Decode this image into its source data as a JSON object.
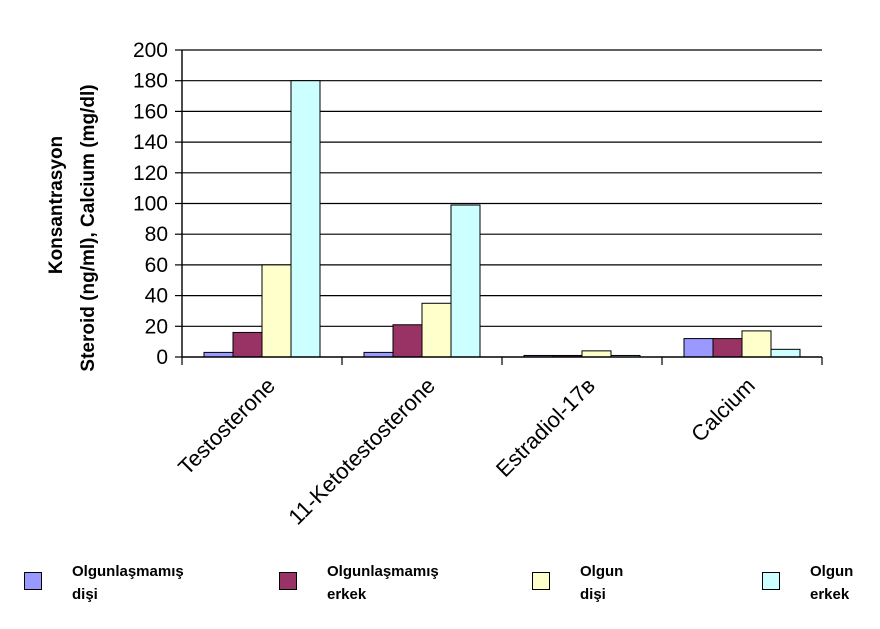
{
  "chart_data": {
    "type": "bar",
    "categories": [
      "Testosterone",
      "11-Ketotestosterone",
      "Estradiol-17ʙ",
      "Calcium"
    ],
    "series": [
      {
        "name": "Olgunlaşmamış dişi",
        "label_lines": [
          "Olgunlaşmamış",
          "dişi"
        ],
        "color": "#9999ff",
        "values": [
          3,
          3,
          1,
          12
        ]
      },
      {
        "name": "Olgunlaşmamış erkek",
        "label_lines": [
          "Olgunlaşmamış",
          "erkek"
        ],
        "color": "#993366",
        "values": [
          16,
          21,
          1,
          12
        ]
      },
      {
        "name": "Olgun dişi",
        "label_lines": [
          "Olgun",
          "dişi"
        ],
        "color": "#ffffcc",
        "values": [
          60,
          35,
          4,
          17
        ]
      },
      {
        "name": "Olgun erkek",
        "label_lines": [
          "Olgun",
          "erkek"
        ],
        "color": "#ccffff",
        "values": [
          180,
          99,
          1,
          5
        ]
      }
    ],
    "title": "",
    "xlabel": "",
    "ylabel_lines": [
      "Konsantrasyon",
      "Steroid (ng/ml), Calcium (mg/dl)"
    ],
    "ylim": [
      0,
      200
    ],
    "yticks": [
      0,
      20,
      40,
      60,
      80,
      100,
      120,
      140,
      160,
      180,
      200
    ],
    "grid": true,
    "legend_position": "bottom"
  }
}
